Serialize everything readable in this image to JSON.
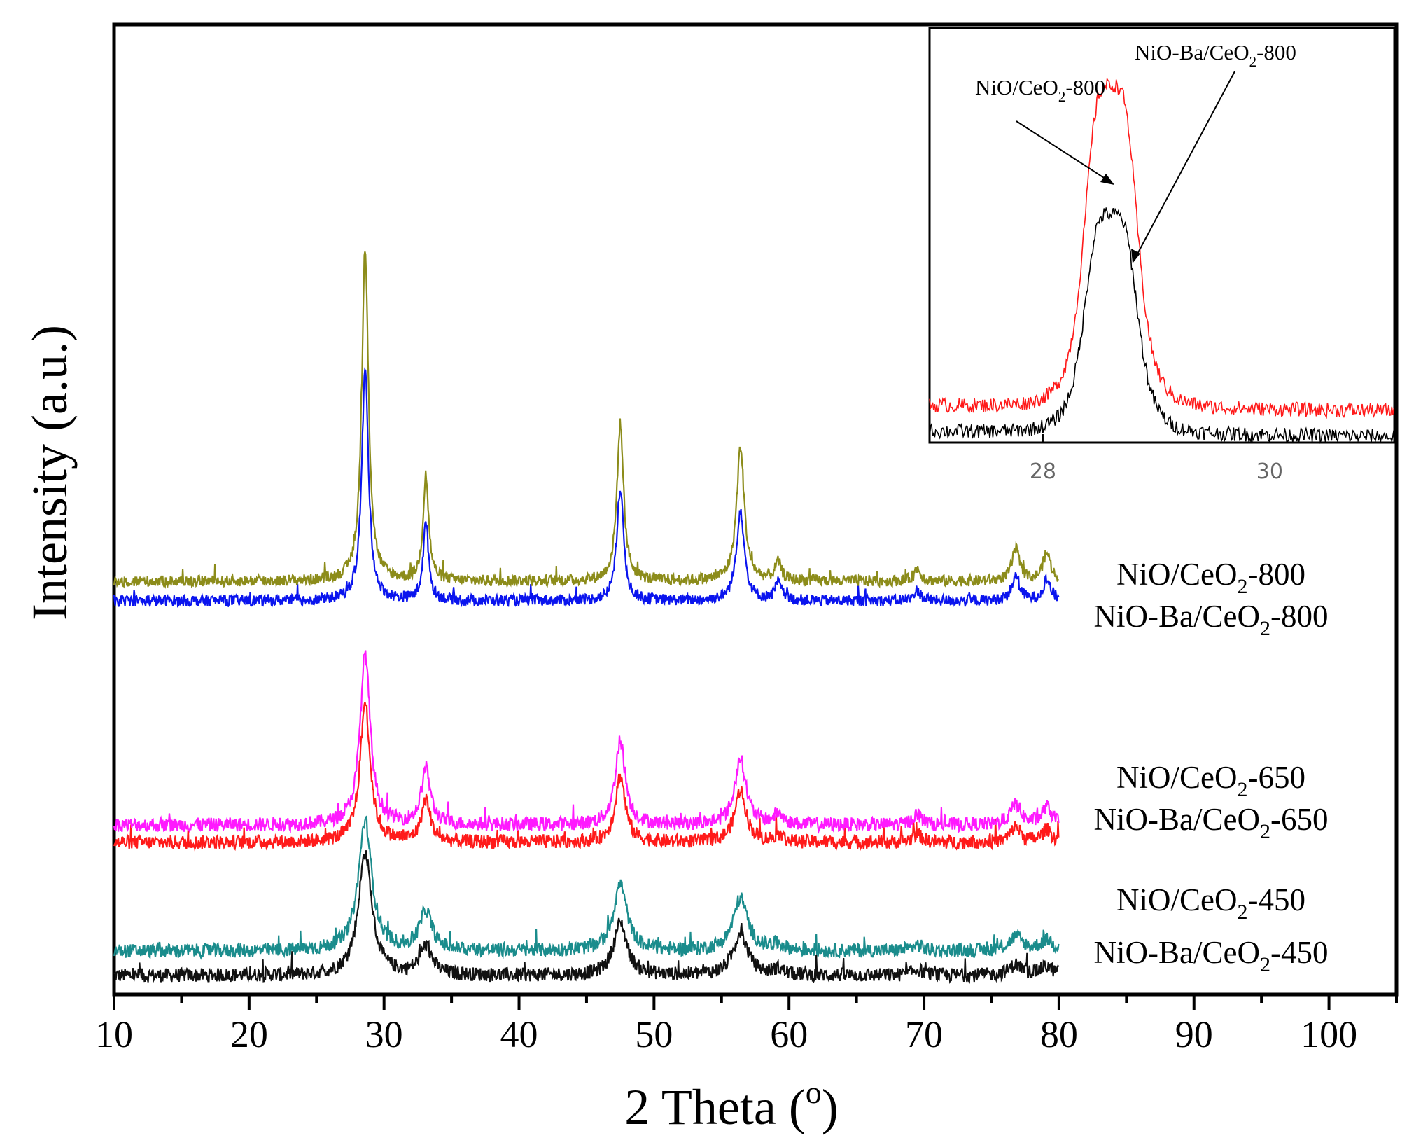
{
  "chart_data": {
    "type": "line",
    "xlabel": "2 Theta (",
    "xlabel_sup": "o",
    "xlabel_close": ")",
    "ylabel": "Intensity (a.u.)",
    "xlim": [
      10,
      105
    ],
    "xticks": [
      10,
      20,
      30,
      40,
      50,
      60,
      70,
      80,
      90,
      100
    ],
    "peaks_2theta": [
      28.6,
      33.1,
      47.5,
      56.4,
      59.2,
      69.5,
      76.8,
      79.1
    ],
    "series": [
      {
        "name": "NiO/CeO2-800",
        "label_main": "NiO/CeO",
        "label_sub": "2",
        "label_tail": "-800",
        "color": "#8c8c1a",
        "baseline": 58,
        "peak_heights": [
          470,
          150,
          225,
          190,
          25,
          18,
          45,
          40
        ],
        "peak_widths": [
          0.3,
          0.25,
          0.3,
          0.35,
          0.3,
          0.3,
          0.35,
          0.35
        ],
        "noise": 8
      },
      {
        "name": "NiO-Ba/CeO2-800",
        "label_main": "NiO-Ba/CeO",
        "label_sub": "2",
        "label_tail": "-800",
        "color": "#0a14ee",
        "baseline": 30,
        "peak_heights": [
          330,
          110,
          160,
          130,
          25,
          15,
          35,
          30
        ],
        "peak_widths": [
          0.3,
          0.25,
          0.3,
          0.35,
          0.3,
          0.3,
          0.35,
          0.35
        ],
        "noise": 8
      },
      {
        "name": "NiO/CeO2-650",
        "label_main": "NiO/CeO",
        "label_sub": "2",
        "label_tail": "-650",
        "color": "#ff19ff",
        "baseline": -290,
        "peak_heights": [
          245,
          80,
          120,
          95,
          15,
          15,
          30,
          25
        ],
        "peak_widths": [
          0.45,
          0.4,
          0.45,
          0.5,
          0.4,
          0.4,
          0.45,
          0.45
        ],
        "noise": 10
      },
      {
        "name": "NiO-Ba/CeO2-650",
        "label_main": "NiO-Ba/CeO",
        "label_sub": "2",
        "label_tail": "-650",
        "color": "#ff1a1a",
        "baseline": -315,
        "peak_heights": [
          200,
          60,
          95,
          75,
          10,
          12,
          22,
          18
        ],
        "peak_widths": [
          0.45,
          0.4,
          0.45,
          0.5,
          0.4,
          0.4,
          0.45,
          0.45
        ],
        "noise": 10
      },
      {
        "name": "NiO/CeO2-450",
        "label_main": "NiO/CeO",
        "label_sub": "2",
        "label_tail": "-450",
        "color": "#1a8c8c",
        "baseline": -470,
        "peak_heights": [
          185,
          55,
          95,
          75,
          8,
          8,
          20,
          15
        ],
        "peak_widths": [
          0.6,
          0.55,
          0.6,
          0.65,
          0.5,
          0.5,
          0.6,
          0.6
        ],
        "noise": 10
      },
      {
        "name": "NiO-Ba/CeO2-450",
        "label_main": "NiO-Ba/CeO",
        "label_sub": "2",
        "label_tail": "-450",
        "color": "#111111",
        "baseline": -505,
        "peak_heights": [
          175,
          40,
          75,
          60,
          8,
          8,
          15,
          12
        ],
        "peak_widths": [
          0.6,
          0.55,
          0.6,
          0.65,
          0.5,
          0.5,
          0.6,
          0.6
        ],
        "noise": 10
      }
    ],
    "inset": {
      "xlim": [
        27.0,
        31.1
      ],
      "xticks": [
        28,
        30
      ],
      "series": [
        {
          "name": "NiO/CeO2-800",
          "color": "#ff1a1a",
          "peak_center": 28.6,
          "peak_height": 1.0,
          "baseline": 0.1
        },
        {
          "name": "NiO-Ba/CeO2-800",
          "color": "#000000",
          "peak_center": 28.6,
          "peak_height": 0.68,
          "baseline": 0.02
        }
      ],
      "annotations": [
        {
          "label_main": "NiO/CeO",
          "label_sub": "2",
          "label_tail": "-800",
          "target": "NiO/CeO2-800"
        },
        {
          "label_main": "NiO-Ba/CeO",
          "label_sub": "2",
          "label_tail": "-800",
          "target": "NiO-Ba/CeO2-800"
        }
      ]
    }
  }
}
